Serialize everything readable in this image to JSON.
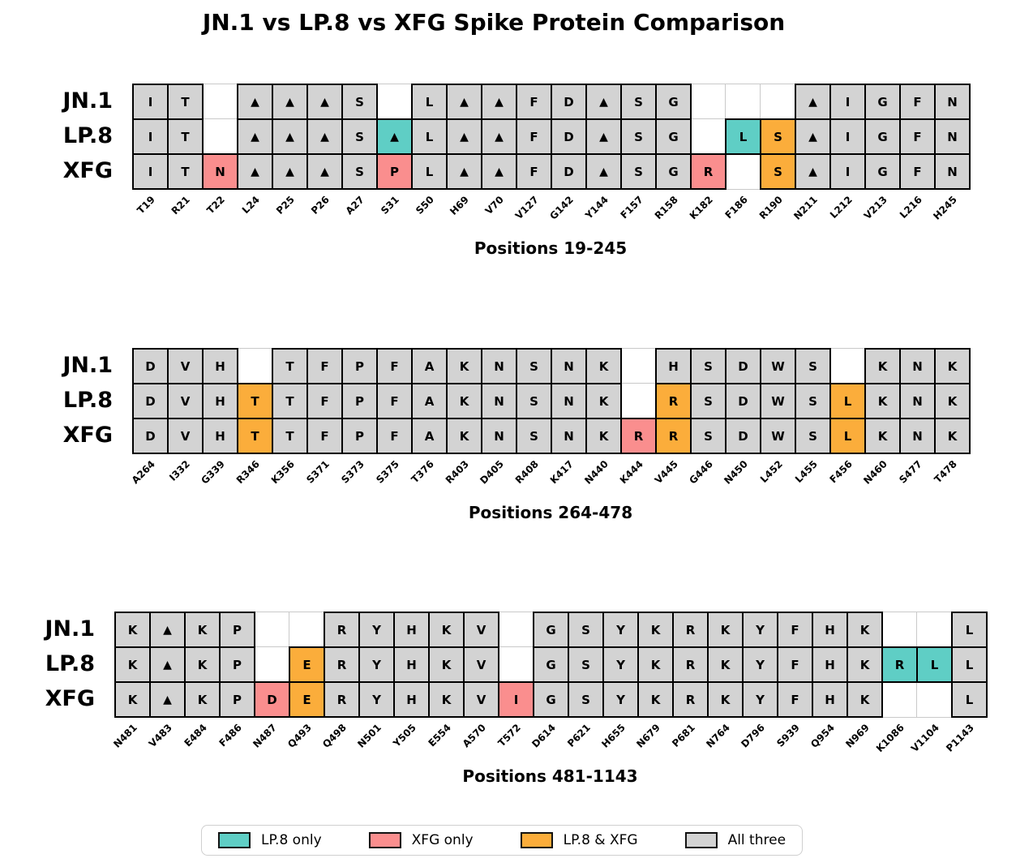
{
  "chart_data": {
    "type": "heatmap",
    "title": "JN.1 vs LP.8 vs XFG Spike Protein Comparison",
    "row_names": [
      "JN.1",
      "LP.8",
      "XFG"
    ],
    "deletion_symbol": "▲",
    "category_colors": {
      "lp8": "#5FCEC5",
      "xfg": "#FA8E8E",
      "both": "#FBAD3B",
      "all": "#D3D3D3",
      "none": "#FFFFFF"
    },
    "legend": [
      {
        "key": "lp8",
        "label": "LP.8 only"
      },
      {
        "key": "xfg",
        "label": "XFG only"
      },
      {
        "key": "both",
        "label": "LP.8 & XFG"
      },
      {
        "key": "all",
        "label": "All three"
      }
    ],
    "panels": [
      {
        "caption": "Positions 19-245",
        "positions": [
          "T19",
          "R21",
          "T22",
          "L24",
          "P25",
          "P26",
          "A27",
          "S31",
          "S50",
          "H69",
          "V70",
          "V127",
          "G142",
          "Y144",
          "F157",
          "R158",
          "K182",
          "F186",
          "R190",
          "N211",
          "L212",
          "V213",
          "L216",
          "H245"
        ],
        "rows": [
          {
            "label": "JN.1",
            "cells": [
              [
                "I",
                "all"
              ],
              [
                "T",
                "all"
              ],
              [
                "",
                "none"
              ],
              [
                "▲",
                "all"
              ],
              [
                "▲",
                "all"
              ],
              [
                "▲",
                "all"
              ],
              [
                "S",
                "all"
              ],
              [
                "",
                "none"
              ],
              [
                "L",
                "all"
              ],
              [
                "▲",
                "all"
              ],
              [
                "▲",
                "all"
              ],
              [
                "F",
                "all"
              ],
              [
                "D",
                "all"
              ],
              [
                "▲",
                "all"
              ],
              [
                "S",
                "all"
              ],
              [
                "G",
                "all"
              ],
              [
                "",
                "none"
              ],
              [
                "",
                "none"
              ],
              [
                "",
                "none"
              ],
              [
                "▲",
                "all"
              ],
              [
                "I",
                "all"
              ],
              [
                "G",
                "all"
              ],
              [
                "F",
                "all"
              ],
              [
                "N",
                "all"
              ]
            ]
          },
          {
            "label": "LP.8",
            "cells": [
              [
                "I",
                "all"
              ],
              [
                "T",
                "all"
              ],
              [
                "",
                "none"
              ],
              [
                "▲",
                "all"
              ],
              [
                "▲",
                "all"
              ],
              [
                "▲",
                "all"
              ],
              [
                "S",
                "all"
              ],
              [
                "▲",
                "lp8"
              ],
              [
                "L",
                "all"
              ],
              [
                "▲",
                "all"
              ],
              [
                "▲",
                "all"
              ],
              [
                "F",
                "all"
              ],
              [
                "D",
                "all"
              ],
              [
                "▲",
                "all"
              ],
              [
                "S",
                "all"
              ],
              [
                "G",
                "all"
              ],
              [
                "",
                "none"
              ],
              [
                "L",
                "lp8"
              ],
              [
                "S",
                "both"
              ],
              [
                "▲",
                "all"
              ],
              [
                "I",
                "all"
              ],
              [
                "G",
                "all"
              ],
              [
                "F",
                "all"
              ],
              [
                "N",
                "all"
              ]
            ]
          },
          {
            "label": "XFG",
            "cells": [
              [
                "I",
                "all"
              ],
              [
                "T",
                "all"
              ],
              [
                "N",
                "xfg"
              ],
              [
                "▲",
                "all"
              ],
              [
                "▲",
                "all"
              ],
              [
                "▲",
                "all"
              ],
              [
                "S",
                "all"
              ],
              [
                "P",
                "xfg"
              ],
              [
                "L",
                "all"
              ],
              [
                "▲",
                "all"
              ],
              [
                "▲",
                "all"
              ],
              [
                "F",
                "all"
              ],
              [
                "D",
                "all"
              ],
              [
                "▲",
                "all"
              ],
              [
                "S",
                "all"
              ],
              [
                "G",
                "all"
              ],
              [
                "R",
                "xfg"
              ],
              [
                "",
                "none"
              ],
              [
                "S",
                "both"
              ],
              [
                "▲",
                "all"
              ],
              [
                "I",
                "all"
              ],
              [
                "G",
                "all"
              ],
              [
                "F",
                "all"
              ],
              [
                "N",
                "all"
              ]
            ]
          }
        ]
      },
      {
        "caption": "Positions 264-478",
        "positions": [
          "A264",
          "I332",
          "G339",
          "R346",
          "K356",
          "S371",
          "S373",
          "S375",
          "T376",
          "R403",
          "D405",
          "R408",
          "K417",
          "N440",
          "K444",
          "V445",
          "G446",
          "N450",
          "L452",
          "L455",
          "F456",
          "N460",
          "S477",
          "T478"
        ],
        "rows": [
          {
            "label": "JN.1",
            "cells": [
              [
                "D",
                "all"
              ],
              [
                "V",
                "all"
              ],
              [
                "H",
                "all"
              ],
              [
                "",
                "none"
              ],
              [
                "T",
                "all"
              ],
              [
                "F",
                "all"
              ],
              [
                "P",
                "all"
              ],
              [
                "F",
                "all"
              ],
              [
                "A",
                "all"
              ],
              [
                "K",
                "all"
              ],
              [
                "N",
                "all"
              ],
              [
                "S",
                "all"
              ],
              [
                "N",
                "all"
              ],
              [
                "K",
                "all"
              ],
              [
                "",
                "none"
              ],
              [
                "H",
                "all"
              ],
              [
                "S",
                "all"
              ],
              [
                "D",
                "all"
              ],
              [
                "W",
                "all"
              ],
              [
                "S",
                "all"
              ],
              [
                "",
                "none"
              ],
              [
                "K",
                "all"
              ],
              [
                "N",
                "all"
              ],
              [
                "K",
                "all"
              ]
            ]
          },
          {
            "label": "LP.8",
            "cells": [
              [
                "D",
                "all"
              ],
              [
                "V",
                "all"
              ],
              [
                "H",
                "all"
              ],
              [
                "T",
                "both"
              ],
              [
                "T",
                "all"
              ],
              [
                "F",
                "all"
              ],
              [
                "P",
                "all"
              ],
              [
                "F",
                "all"
              ],
              [
                "A",
                "all"
              ],
              [
                "K",
                "all"
              ],
              [
                "N",
                "all"
              ],
              [
                "S",
                "all"
              ],
              [
                "N",
                "all"
              ],
              [
                "K",
                "all"
              ],
              [
                "",
                "none"
              ],
              [
                "R",
                "both"
              ],
              [
                "S",
                "all"
              ],
              [
                "D",
                "all"
              ],
              [
                "W",
                "all"
              ],
              [
                "S",
                "all"
              ],
              [
                "L",
                "both"
              ],
              [
                "K",
                "all"
              ],
              [
                "N",
                "all"
              ],
              [
                "K",
                "all"
              ]
            ]
          },
          {
            "label": "XFG",
            "cells": [
              [
                "D",
                "all"
              ],
              [
                "V",
                "all"
              ],
              [
                "H",
                "all"
              ],
              [
                "T",
                "both"
              ],
              [
                "T",
                "all"
              ],
              [
                "F",
                "all"
              ],
              [
                "P",
                "all"
              ],
              [
                "F",
                "all"
              ],
              [
                "A",
                "all"
              ],
              [
                "K",
                "all"
              ],
              [
                "N",
                "all"
              ],
              [
                "S",
                "all"
              ],
              [
                "N",
                "all"
              ],
              [
                "K",
                "all"
              ],
              [
                "R",
                "xfg"
              ],
              [
                "R",
                "both"
              ],
              [
                "S",
                "all"
              ],
              [
                "D",
                "all"
              ],
              [
                "W",
                "all"
              ],
              [
                "S",
                "all"
              ],
              [
                "L",
                "both"
              ],
              [
                "K",
                "all"
              ],
              [
                "N",
                "all"
              ],
              [
                "K",
                "all"
              ]
            ]
          }
        ]
      },
      {
        "caption": "Positions 481-1143",
        "positions": [
          "N481",
          "V483",
          "E484",
          "F486",
          "N487",
          "Q493",
          "Q498",
          "N501",
          "Y505",
          "E554",
          "A570",
          "T572",
          "D614",
          "P621",
          "H655",
          "N679",
          "P681",
          "N764",
          "D796",
          "S939",
          "Q954",
          "N969",
          "K1086",
          "V1104",
          "P1143"
        ],
        "rows": [
          {
            "label": "JN.1",
            "cells": [
              [
                "K",
                "all"
              ],
              [
                "▲",
                "all"
              ],
              [
                "K",
                "all"
              ],
              [
                "P",
                "all"
              ],
              [
                "",
                "none"
              ],
              [
                "",
                "none"
              ],
              [
                "R",
                "all"
              ],
              [
                "Y",
                "all"
              ],
              [
                "H",
                "all"
              ],
              [
                "K",
                "all"
              ],
              [
                "V",
                "all"
              ],
              [
                "",
                "none"
              ],
              [
                "G",
                "all"
              ],
              [
                "S",
                "all"
              ],
              [
                "Y",
                "all"
              ],
              [
                "K",
                "all"
              ],
              [
                "R",
                "all"
              ],
              [
                "K",
                "all"
              ],
              [
                "Y",
                "all"
              ],
              [
                "F",
                "all"
              ],
              [
                "H",
                "all"
              ],
              [
                "K",
                "all"
              ],
              [
                "",
                "none"
              ],
              [
                "",
                "none"
              ],
              [
                "L",
                "all"
              ]
            ]
          },
          {
            "label": "LP.8",
            "cells": [
              [
                "K",
                "all"
              ],
              [
                "▲",
                "all"
              ],
              [
                "K",
                "all"
              ],
              [
                "P",
                "all"
              ],
              [
                "",
                "none"
              ],
              [
                "E",
                "both"
              ],
              [
                "R",
                "all"
              ],
              [
                "Y",
                "all"
              ],
              [
                "H",
                "all"
              ],
              [
                "K",
                "all"
              ],
              [
                "V",
                "all"
              ],
              [
                "",
                "none"
              ],
              [
                "G",
                "all"
              ],
              [
                "S",
                "all"
              ],
              [
                "Y",
                "all"
              ],
              [
                "K",
                "all"
              ],
              [
                "R",
                "all"
              ],
              [
                "K",
                "all"
              ],
              [
                "Y",
                "all"
              ],
              [
                "F",
                "all"
              ],
              [
                "H",
                "all"
              ],
              [
                "K",
                "all"
              ],
              [
                "R",
                "lp8"
              ],
              [
                "L",
                "lp8"
              ],
              [
                "L",
                "all"
              ]
            ]
          },
          {
            "label": "XFG",
            "cells": [
              [
                "K",
                "all"
              ],
              [
                "▲",
                "all"
              ],
              [
                "K",
                "all"
              ],
              [
                "P",
                "all"
              ],
              [
                "D",
                "xfg"
              ],
              [
                "E",
                "both"
              ],
              [
                "R",
                "all"
              ],
              [
                "Y",
                "all"
              ],
              [
                "H",
                "all"
              ],
              [
                "K",
                "all"
              ],
              [
                "V",
                "all"
              ],
              [
                "I",
                "xfg"
              ],
              [
                "G",
                "all"
              ],
              [
                "S",
                "all"
              ],
              [
                "Y",
                "all"
              ],
              [
                "K",
                "all"
              ],
              [
                "R",
                "all"
              ],
              [
                "K",
                "all"
              ],
              [
                "Y",
                "all"
              ],
              [
                "F",
                "all"
              ],
              [
                "H",
                "all"
              ],
              [
                "K",
                "all"
              ],
              [
                "",
                "none"
              ],
              [
                "",
                "none"
              ],
              [
                "L",
                "all"
              ]
            ]
          }
        ]
      }
    ]
  }
}
